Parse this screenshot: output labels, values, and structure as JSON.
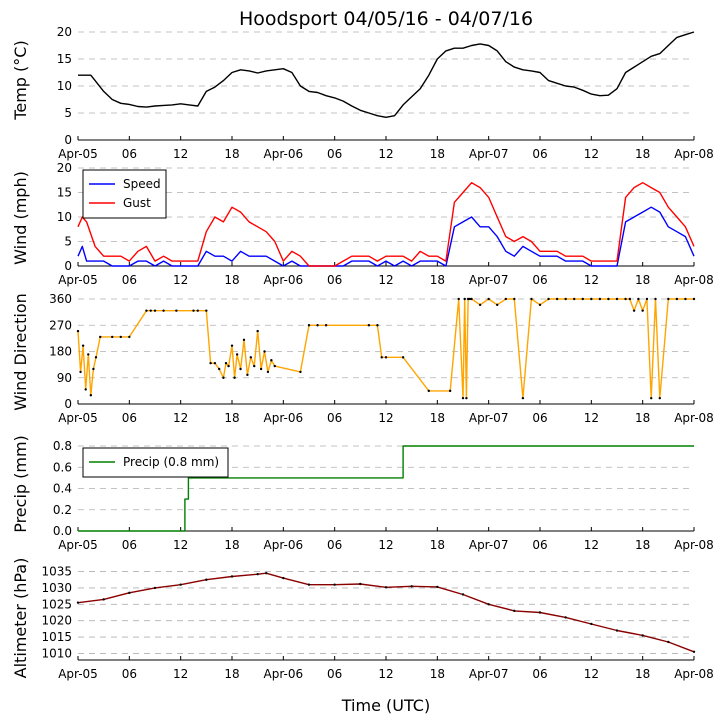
{
  "figure_title": "Hoodsport 04/05/16 - 04/07/16",
  "x_axis_label": "Time (UTC)",
  "x_tick_labels": [
    "Apr-05",
    "06",
    "12",
    "18",
    "Apr-06",
    "06",
    "12",
    "18",
    "Apr-07",
    "06",
    "12",
    "18",
    "Apr-08"
  ],
  "colors": {
    "temp": "#000000",
    "wind_speed": "#0000ff",
    "wind_gust": "#ff0000",
    "wind_dir_line": "#ffa500",
    "wind_dir_marker": "#000000",
    "precip": "#008000",
    "altimeter_line": "#8b0000",
    "grid": "#b0b0b0"
  },
  "chart_data": [
    {
      "type": "line",
      "panel": "temperature",
      "ylabel": "Temp (°C)",
      "ylim": [
        0,
        20
      ],
      "yticks": [
        0,
        5,
        10,
        15,
        20
      ],
      "x_unit": "hours since Apr-05 00:00 UTC",
      "xlim": [
        0,
        72
      ],
      "series": [
        {
          "name": "Temp",
          "x": [
            0,
            1.5,
            2,
            3,
            4,
            5,
            6,
            7,
            8,
            9,
            10,
            11,
            12,
            13,
            14,
            15,
            16,
            17,
            18,
            19,
            20,
            21,
            22,
            23,
            24,
            25,
            26,
            27,
            28,
            29,
            30,
            31,
            32,
            33,
            34,
            35,
            36,
            37,
            38,
            39,
            40,
            41,
            42,
            43,
            44,
            45,
            46,
            47,
            48,
            49,
            50,
            51,
            52,
            53,
            54,
            55,
            56,
            57,
            58,
            59,
            60,
            61,
            62,
            63,
            64,
            65,
            66,
            67,
            68,
            69,
            70,
            71,
            72
          ],
          "values": [
            12,
            12,
            11,
            9,
            7.5,
            6.8,
            6.6,
            6.2,
            6.1,
            6.3,
            6.4,
            6.5,
            6.7,
            6.5,
            6.3,
            9,
            9.8,
            11,
            12.5,
            13,
            12.8,
            12.4,
            12.8,
            13,
            13.2,
            12.5,
            10,
            9,
            8.8,
            8.2,
            7.8,
            7.2,
            6.3,
            5.5,
            5,
            4.5,
            4.2,
            4.5,
            6.5,
            8,
            9.5,
            12,
            15,
            16.5,
            17,
            17,
            17.5,
            17.8,
            17.5,
            16.5,
            14.5,
            13.5,
            13,
            12.8,
            12.5,
            11,
            10.5,
            10,
            9.8,
            9.2,
            8.5,
            8.2,
            8.3,
            9.5,
            12.5,
            13.5,
            14.5,
            15.5,
            16,
            17.5,
            19,
            19.5,
            20
          ]
        }
      ]
    },
    {
      "type": "line",
      "panel": "wind",
      "ylabel": "Wind (mph)",
      "ylim": [
        0,
        20
      ],
      "yticks": [
        0,
        5,
        10,
        15,
        20
      ],
      "xlim": [
        0,
        72
      ],
      "legend": [
        "Speed",
        "Gust"
      ],
      "legend_position": "top-left",
      "series": [
        {
          "name": "Speed",
          "x": [
            0,
            0.5,
            1,
            2,
            3,
            4,
            5,
            6,
            7,
            8,
            9,
            10,
            11,
            12,
            13,
            14,
            15,
            16,
            17,
            18,
            19,
            20,
            21,
            22,
            23,
            24,
            25,
            26,
            27,
            28,
            29,
            30,
            31,
            32,
            33,
            34,
            35,
            36,
            37,
            38,
            39,
            40,
            41,
            42,
            43,
            44,
            45,
            46,
            47,
            48,
            49,
            50,
            51,
            52,
            53,
            54,
            55,
            56,
            57,
            58,
            59,
            60,
            61,
            62,
            63,
            64,
            65,
            66,
            67,
            68,
            69,
            70,
            71,
            72
          ],
          "values": [
            2,
            4,
            1,
            1,
            1,
            0,
            0,
            0,
            1,
            1,
            0,
            1,
            0,
            0,
            0,
            0,
            3,
            2,
            2,
            1,
            3,
            2,
            2,
            2,
            1,
            0,
            1,
            0,
            0,
            0,
            0,
            0,
            0,
            1,
            1,
            1,
            0,
            1,
            0,
            1,
            0,
            1,
            1,
            1,
            0,
            8,
            9,
            10,
            8,
            8,
            6,
            3,
            2,
            4,
            3,
            2,
            2,
            2,
            1,
            1,
            1,
            0,
            0,
            0,
            0,
            9,
            10,
            11,
            12,
            11,
            8,
            7,
            6,
            2
          ]
        },
        {
          "name": "Gust",
          "x": [
            0,
            0.5,
            1,
            2,
            3,
            4,
            5,
            6,
            7,
            8,
            9,
            10,
            11,
            12,
            13,
            14,
            15,
            16,
            17,
            18,
            19,
            20,
            21,
            22,
            23,
            24,
            25,
            26,
            27,
            28,
            29,
            30,
            31,
            32,
            33,
            34,
            35,
            36,
            37,
            38,
            39,
            40,
            41,
            42,
            43,
            44,
            45,
            46,
            47,
            48,
            49,
            50,
            51,
            52,
            53,
            54,
            55,
            56,
            57,
            58,
            59,
            60,
            61,
            62,
            63,
            64,
            65,
            66,
            67,
            68,
            69,
            70,
            71,
            72
          ],
          "values": [
            8,
            10,
            9,
            4,
            2,
            2,
            2,
            1,
            3,
            4,
            1,
            2,
            1,
            1,
            1,
            1,
            7,
            10,
            9,
            12,
            11,
            9,
            8,
            7,
            5,
            1,
            3,
            2,
            0,
            0,
            0,
            0,
            1,
            2,
            2,
            2,
            1,
            2,
            2,
            2,
            1,
            3,
            2,
            2,
            1,
            13,
            15,
            17,
            16,
            14,
            10,
            6,
            5,
            6,
            5,
            3,
            3,
            3,
            2,
            2,
            2,
            1,
            1,
            1,
            1,
            14,
            16,
            17,
            16,
            15,
            12,
            10,
            8,
            4
          ]
        }
      ]
    },
    {
      "type": "line",
      "panel": "wind_direction",
      "ylabel": "Wind Direction",
      "ylim": [
        0,
        360
      ],
      "yticks": [
        0,
        90,
        180,
        270,
        360
      ],
      "xlim": [
        0,
        72
      ],
      "series": [
        {
          "name": "Wind Direction",
          "x": [
            0,
            0.3,
            0.6,
            0.9,
            1.2,
            1.5,
            1.8,
            2.1,
            2.6,
            4,
            5,
            6,
            8,
            8.5,
            9,
            10,
            11.5,
            13.5,
            14,
            15,
            15.5,
            16,
            16.5,
            17,
            17.3,
            17.6,
            18,
            18.3,
            18.6,
            19,
            19.4,
            19.8,
            20.2,
            20.6,
            21,
            21.4,
            21.8,
            22.2,
            22.6,
            23,
            26,
            27,
            28,
            29,
            34,
            35,
            35.5,
            36,
            38,
            41,
            43.5,
            44.5,
            45,
            45.2,
            45.4,
            45.6,
            45.8,
            46,
            47,
            48,
            49,
            50,
            51,
            52,
            53,
            54,
            55,
            56,
            57,
            58,
            59,
            60,
            61,
            62,
            63,
            64,
            64.5,
            65,
            65.5,
            66,
            66.5,
            67,
            67.5,
            68,
            69,
            70,
            71,
            72
          ],
          "values": [
            250,
            110,
            200,
            50,
            170,
            30,
            120,
            160,
            230,
            230,
            230,
            230,
            320,
            320,
            320,
            320,
            320,
            320,
            320,
            320,
            140,
            140,
            120,
            90,
            140,
            130,
            200,
            90,
            170,
            120,
            220,
            100,
            160,
            130,
            250,
            120,
            180,
            110,
            150,
            130,
            110,
            270,
            270,
            270,
            270,
            270,
            160,
            160,
            160,
            45,
            45,
            360,
            20,
            360,
            20,
            360,
            360,
            360,
            340,
            360,
            340,
            360,
            360,
            20,
            360,
            340,
            360,
            360,
            360,
            360,
            360,
            360,
            360,
            360,
            360,
            360,
            360,
            320,
            360,
            320,
            360,
            20,
            360,
            20,
            360,
            360,
            360,
            360
          ]
        }
      ]
    },
    {
      "type": "line",
      "panel": "precip",
      "ylabel": "Precip (mm)",
      "ylim": [
        0,
        0.8
      ],
      "yticks": [
        0.0,
        0.2,
        0.4,
        0.6,
        0.8
      ],
      "ytick_labels": [
        "0.0",
        "0.2",
        "0.4",
        "0.6",
        "0.8"
      ],
      "xlim": [
        0,
        72
      ],
      "legend": [
        "Precip (0.8 mm)"
      ],
      "legend_position": "top-left",
      "series": [
        {
          "name": "Precip (0.8 mm)",
          "x": [
            0,
            12.5,
            12.5,
            12.9,
            12.9,
            38,
            38,
            72
          ],
          "values": [
            0,
            0,
            0.3,
            0.3,
            0.5,
            0.5,
            0.8,
            0.8
          ]
        }
      ]
    },
    {
      "type": "line",
      "panel": "altimeter",
      "ylabel": "Altimeter (hPa)",
      "ylim": [
        1008,
        1037
      ],
      "yticks": [
        1010,
        1015,
        1020,
        1025,
        1030,
        1035
      ],
      "xlim": [
        0,
        72
      ],
      "series": [
        {
          "name": "Altimeter",
          "x": [
            0,
            3,
            6,
            9,
            12,
            15,
            18,
            21,
            22,
            24,
            27,
            30,
            33,
            36,
            39,
            42,
            45,
            48,
            51,
            54,
            57,
            60,
            63,
            66,
            69,
            72
          ],
          "values": [
            1025.5,
            1026.5,
            1028.5,
            1030,
            1031,
            1032.5,
            1033.5,
            1034.2,
            1034.5,
            1033,
            1031,
            1031,
            1031.2,
            1030.2,
            1030.5,
            1030.3,
            1028,
            1025,
            1023,
            1022.5,
            1021,
            1019,
            1017,
            1015.5,
            1013.5,
            1010.5
          ]
        }
      ]
    }
  ]
}
